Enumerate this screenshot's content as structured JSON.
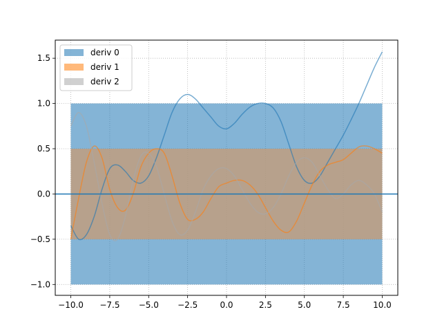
{
  "chart_data": {
    "type": "line",
    "title": "",
    "xlabel": "",
    "ylabel": "",
    "xlim": [
      -11.0,
      11.0
    ],
    "ylim": [
      -1.12,
      1.7
    ],
    "x_ticks": [
      -10.0,
      -7.5,
      -5.0,
      -2.5,
      0.0,
      2.5,
      5.0,
      7.5,
      10.0
    ],
    "x_tick_labels": [
      "−10.0",
      "−7.5",
      "−5.0",
      "−2.5",
      "0.0",
      "2.5",
      "5.0",
      "7.5",
      "10.0"
    ],
    "y_ticks": [
      -1.0,
      -0.5,
      0.0,
      0.5,
      1.0,
      1.5
    ],
    "y_tick_labels": [
      "−1.0",
      "−0.5",
      "0.0",
      "0.5",
      "1.0",
      "1.5"
    ],
    "grid": true,
    "legend": {
      "position": "upper-left",
      "entries": [
        "deriv 0",
        "deriv 1",
        "deriv 2"
      ]
    },
    "bands": [
      {
        "name": "deriv 0",
        "x_range": [
          -10,
          10
        ],
        "y_range": [
          -1.0,
          1.0
        ],
        "color": "#1f77b4"
      },
      {
        "name": "deriv 1",
        "x_range": [
          -10,
          10
        ],
        "y_range": [
          -0.5,
          0.5
        ],
        "color": "#ff7f0e"
      },
      {
        "name": "deriv 2",
        "x_range": [
          -10,
          10
        ],
        "y_range": [
          -0.5,
          0.5
        ],
        "color": "#a9a9a9"
      }
    ],
    "hline": {
      "y": 0.0,
      "color": "#1f77b4"
    },
    "series": [
      {
        "name": "deriv 0",
        "color": "#1f77b4",
        "x": [
          -10,
          -9.5,
          -9,
          -8.5,
          -8,
          -7.5,
          -7,
          -6.5,
          -6,
          -5.5,
          -5,
          -4.5,
          -4,
          -3.5,
          -3,
          -2.5,
          -2,
          -1.5,
          -1,
          -0.5,
          0,
          0.5,
          1,
          1.5,
          2,
          2.5,
          3,
          3.5,
          4,
          4.5,
          5,
          5.5,
          6,
          6.5,
          7,
          7.5,
          8,
          8.5,
          9,
          9.5,
          10
        ],
        "y": [
          -0.35,
          -0.5,
          -0.45,
          -0.25,
          0.05,
          0.28,
          0.32,
          0.25,
          0.15,
          0.12,
          0.2,
          0.4,
          0.65,
          0.9,
          1.05,
          1.1,
          1.05,
          0.95,
          0.85,
          0.75,
          0.72,
          0.78,
          0.88,
          0.96,
          1.0,
          1.0,
          0.95,
          0.8,
          0.55,
          0.3,
          0.15,
          0.12,
          0.2,
          0.35,
          0.5,
          0.65,
          0.82,
          1.0,
          1.2,
          1.4,
          1.57
        ]
      },
      {
        "name": "deriv 1",
        "color": "#ff7f0e",
        "x": [
          -10,
          -9.5,
          -9,
          -8.5,
          -8,
          -7.5,
          -7,
          -6.5,
          -6,
          -5.5,
          -5,
          -4.5,
          -4,
          -3.5,
          -3,
          -2.5,
          -2,
          -1.5,
          -1,
          -0.5,
          0,
          0.5,
          1,
          1.5,
          2,
          2.5,
          3,
          3.5,
          4,
          4.5,
          5,
          5.5,
          6,
          6.5,
          7,
          7.5,
          8,
          8.5,
          9,
          9.5,
          10
        ],
        "y": [
          -0.5,
          -0.05,
          0.35,
          0.53,
          0.4,
          0.05,
          -0.15,
          -0.18,
          0.0,
          0.3,
          0.45,
          0.5,
          0.45,
          0.2,
          -0.1,
          -0.28,
          -0.28,
          -0.2,
          -0.05,
          0.08,
          0.12,
          0.15,
          0.15,
          0.1,
          0.0,
          -0.15,
          -0.3,
          -0.4,
          -0.42,
          -0.3,
          -0.1,
          0.1,
          0.25,
          0.32,
          0.35,
          0.38,
          0.45,
          0.52,
          0.53,
          0.5,
          0.45
        ]
      },
      {
        "name": "deriv 2",
        "color": "#a9a9a9",
        "x": [
          -10,
          -9.5,
          -9,
          -8.5,
          -8,
          -7.5,
          -7,
          -6.5,
          -6,
          -5.5,
          -5,
          -4.5,
          -4,
          -3.5,
          -3,
          -2.5,
          -2,
          -1.5,
          -1,
          -0.5,
          0,
          0.5,
          1,
          1.5,
          2,
          2.5,
          3,
          3.5,
          4,
          4.5,
          5,
          5.5,
          6,
          6.5,
          7,
          7.5,
          8,
          8.5,
          9,
          9.5,
          10
        ],
        "y": [
          0.75,
          0.9,
          0.75,
          0.35,
          -0.1,
          -0.45,
          -0.5,
          -0.25,
          0.15,
          0.42,
          0.45,
          0.3,
          0.0,
          -0.3,
          -0.45,
          -0.4,
          -0.2,
          0.05,
          0.2,
          0.28,
          0.28,
          0.2,
          0.05,
          -0.1,
          -0.2,
          -0.22,
          -0.15,
          0.0,
          0.2,
          0.35,
          0.4,
          0.35,
          0.2,
          0.05,
          -0.05,
          0.0,
          0.1,
          0.15,
          0.1,
          0.0,
          -0.2
        ]
      }
    ]
  }
}
